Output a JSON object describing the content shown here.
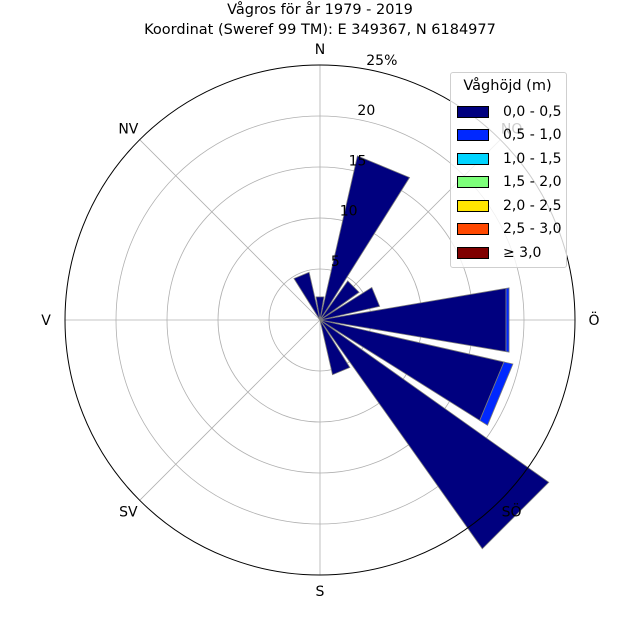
{
  "chart_data": {
    "type": "windrose",
    "title": "Vågros för år 1979 - 2019",
    "subtitle": "Koordinat (Sweref 99 TM): E 349367, N 6184977",
    "radial_unit": "%",
    "radial_ticks": [
      5,
      10,
      15,
      20,
      25
    ],
    "radial_tick_labels": [
      "5",
      "10",
      "15",
      "20",
      "25%"
    ],
    "rmax": 25,
    "direction_labels": [
      "N",
      "NO",
      "Ö",
      "SÖ",
      "S",
      "SV",
      "V",
      "NV"
    ],
    "legend_title": "Våghöjd (m)",
    "legend_placement": "top-right",
    "bins": [
      {
        "label": "0,0 - 0,5",
        "color": "#00007f"
      },
      {
        "label": "0,5 - 1,0",
        "color": "#0028ff"
      },
      {
        "label": "1,0 - 1,5",
        "color": "#00d4ff"
      },
      {
        "label": "1,5 - 2,0",
        "color": "#7dff7a"
      },
      {
        "label": "2,0 - 2,5",
        "color": "#ffe500"
      },
      {
        "label": "2,5 - 3,0",
        "color": "#ff4800"
      },
      {
        "label": "≥ 3,0",
        "color": "#7f0000"
      }
    ],
    "sector_width_deg": 22.5,
    "sectors": [
      {
        "direction_deg": 0,
        "values": [
          2.3,
          0,
          0,
          0,
          0,
          0,
          0
        ]
      },
      {
        "direction_deg": 22.5,
        "values": [
          16.5,
          0,
          0,
          0,
          0,
          0,
          0
        ]
      },
      {
        "direction_deg": 45,
        "values": [
          4.7,
          0,
          0,
          0,
          0,
          0,
          0
        ]
      },
      {
        "direction_deg": 67.5,
        "values": [
          6.0,
          0,
          0,
          0,
          0,
          0,
          0
        ]
      },
      {
        "direction_deg": 90,
        "values": [
          18.5,
          0.3,
          0,
          0,
          0,
          0,
          0
        ]
      },
      {
        "direction_deg": 112.5,
        "values": [
          18.5,
          0.9,
          0,
          0,
          0,
          0,
          0
        ]
      },
      {
        "direction_deg": 135,
        "values": [
          27.5,
          0,
          0,
          0,
          0,
          0,
          0
        ]
      },
      {
        "direction_deg": 157.5,
        "values": [
          5.5,
          0,
          0,
          0,
          0,
          0,
          0
        ]
      },
      {
        "direction_deg": 180,
        "values": [
          0,
          0,
          0,
          0,
          0,
          0,
          0
        ]
      },
      {
        "direction_deg": 202.5,
        "values": [
          0,
          0,
          0,
          0,
          0,
          0,
          0
        ]
      },
      {
        "direction_deg": 225,
        "values": [
          0,
          0,
          0,
          0,
          0,
          0,
          0
        ]
      },
      {
        "direction_deg": 247.5,
        "values": [
          0,
          0,
          0,
          0,
          0,
          0,
          0
        ]
      },
      {
        "direction_deg": 270,
        "values": [
          0,
          0,
          0,
          0,
          0,
          0,
          0
        ]
      },
      {
        "direction_deg": 292.5,
        "values": [
          0,
          0,
          0,
          0,
          0,
          0,
          0
        ]
      },
      {
        "direction_deg": 315,
        "values": [
          0,
          0,
          0,
          0,
          0,
          0,
          0
        ]
      },
      {
        "direction_deg": 337.5,
        "values": [
          4.8,
          0,
          0,
          0,
          0,
          0,
          0
        ]
      }
    ],
    "grid": true
  }
}
